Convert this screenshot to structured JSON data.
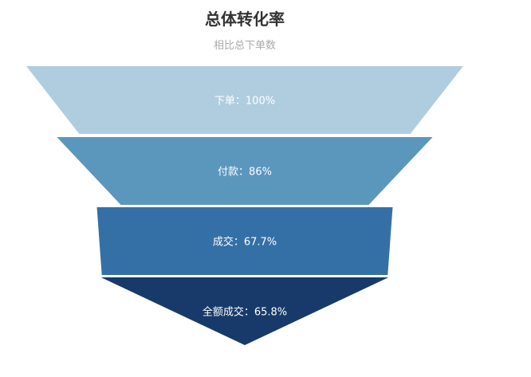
{
  "chart_data": {
    "type": "funnel",
    "title": "总体转化率",
    "subtitle": "相比总下单数",
    "categories": [
      "下单",
      "付款",
      "成交",
      "全额成交"
    ],
    "values": [
      100,
      86,
      67.7,
      65.8
    ],
    "unit": "%",
    "colors": [
      "#b0cde0",
      "#5b96bd",
      "#3470a6",
      "#183a6b"
    ],
    "label_color": "#ffffff",
    "background": "#ffffff"
  }
}
